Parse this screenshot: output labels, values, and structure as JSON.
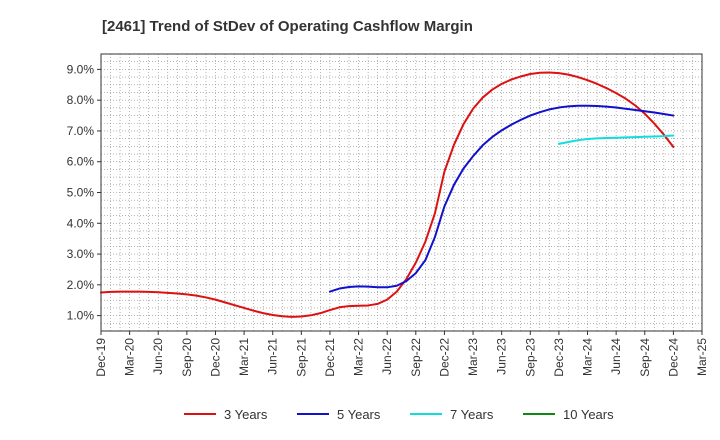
{
  "chart_data": {
    "type": "line",
    "title": "[2461]  Trend of StDev of Operating Cashflow Margin",
    "xlabel": "",
    "ylabel": "",
    "x_tick_labels": [
      "Dec-19",
      "Mar-20",
      "Jun-20",
      "Sep-20",
      "Dec-20",
      "Mar-21",
      "Jun-21",
      "Sep-21",
      "Dec-21",
      "Mar-22",
      "Jun-22",
      "Sep-22",
      "Dec-22",
      "Mar-23",
      "Jun-23",
      "Sep-23",
      "Dec-23",
      "Mar-24",
      "Jun-24",
      "Sep-24",
      "Dec-24",
      "Mar-25"
    ],
    "y_tick_labels": [
      "1.0%",
      "2.0%",
      "3.0%",
      "4.0%",
      "5.0%",
      "6.0%",
      "7.0%",
      "8.0%",
      "9.0%"
    ],
    "y_ticks": [
      1,
      2,
      3,
      4,
      5,
      6,
      7,
      8,
      9
    ],
    "ylim": [
      0.5,
      9.5
    ],
    "grid": true,
    "legend_position": "bottom",
    "series": [
      {
        "name": "3 Years",
        "color": "#dd1111",
        "x": [
          "Dec-19",
          "Jan-20",
          "Feb-20",
          "Mar-20",
          "Apr-20",
          "May-20",
          "Jun-20",
          "Jul-20",
          "Aug-20",
          "Sep-20",
          "Oct-20",
          "Nov-20",
          "Dec-20",
          "Jan-21",
          "Feb-21",
          "Mar-21",
          "Apr-21",
          "May-21",
          "Jun-21",
          "Jul-21",
          "Aug-21",
          "Sep-21",
          "Oct-21",
          "Nov-21",
          "Dec-21",
          "Jan-22",
          "Feb-22",
          "Mar-22",
          "Apr-22",
          "May-22",
          "Jun-22",
          "Jul-22",
          "Aug-22",
          "Sep-22",
          "Oct-22",
          "Nov-22",
          "Dec-22",
          "Jan-23",
          "Feb-23",
          "Mar-23",
          "Apr-23",
          "May-23",
          "Jun-23",
          "Jul-23",
          "Aug-23",
          "Sep-23",
          "Oct-23",
          "Nov-23",
          "Dec-23",
          "Jan-24",
          "Feb-24",
          "Mar-24",
          "Apr-24",
          "May-24",
          "Jun-24",
          "Jul-24",
          "Aug-24",
          "Sep-24",
          "Oct-24",
          "Nov-24",
          "Dec-24"
        ],
        "values": [
          1.75,
          1.77,
          1.78,
          1.78,
          1.78,
          1.77,
          1.76,
          1.74,
          1.72,
          1.69,
          1.65,
          1.59,
          1.52,
          1.43,
          1.34,
          1.25,
          1.16,
          1.08,
          1.02,
          0.98,
          0.96,
          0.97,
          1.01,
          1.08,
          1.18,
          1.27,
          1.31,
          1.32,
          1.33,
          1.38,
          1.52,
          1.78,
          2.18,
          2.72,
          3.4,
          4.32,
          5.68,
          6.55,
          7.22,
          7.72,
          8.08,
          8.34,
          8.53,
          8.67,
          8.77,
          8.85,
          8.89,
          8.9,
          8.88,
          8.83,
          8.75,
          8.65,
          8.53,
          8.39,
          8.23,
          8.05,
          7.83,
          7.56,
          7.24,
          6.88,
          6.48
        ]
      },
      {
        "name": "5 Years",
        "color": "#1111cc",
        "x": [
          "Dec-21",
          "Jan-22",
          "Feb-22",
          "Mar-22",
          "Apr-22",
          "May-22",
          "Jun-22",
          "Jul-22",
          "Aug-22",
          "Sep-22",
          "Oct-22",
          "Nov-22",
          "Dec-22",
          "Jan-23",
          "Feb-23",
          "Mar-23",
          "Apr-23",
          "May-23",
          "Jun-23",
          "Jul-23",
          "Aug-23",
          "Sep-23",
          "Oct-23",
          "Nov-23",
          "Dec-23",
          "Jan-24",
          "Feb-24",
          "Mar-24",
          "Apr-24",
          "May-24",
          "Jun-24",
          "Jul-24",
          "Aug-24",
          "Sep-24",
          "Oct-24",
          "Nov-24",
          "Dec-24"
        ],
        "values": [
          1.78,
          1.88,
          1.93,
          1.95,
          1.94,
          1.92,
          1.92,
          1.97,
          2.12,
          2.38,
          2.8,
          3.55,
          4.55,
          5.25,
          5.78,
          6.18,
          6.53,
          6.8,
          7.02,
          7.2,
          7.36,
          7.5,
          7.61,
          7.7,
          7.76,
          7.8,
          7.82,
          7.82,
          7.81,
          7.79,
          7.76,
          7.72,
          7.68,
          7.64,
          7.6,
          7.55,
          7.5
        ]
      },
      {
        "name": "7 Years",
        "color": "#11dddd",
        "x": [
          "Dec-23",
          "Jan-24",
          "Feb-24",
          "Mar-24",
          "Apr-24",
          "May-24",
          "Jun-24",
          "Jul-24",
          "Aug-24",
          "Sep-24",
          "Oct-24",
          "Nov-24",
          "Dec-24"
        ],
        "values": [
          6.58,
          6.64,
          6.7,
          6.74,
          6.76,
          6.77,
          6.78,
          6.79,
          6.8,
          6.81,
          6.82,
          6.83,
          6.85
        ]
      },
      {
        "name": "10 Years",
        "color": "#118811",
        "x": [],
        "values": []
      }
    ]
  }
}
